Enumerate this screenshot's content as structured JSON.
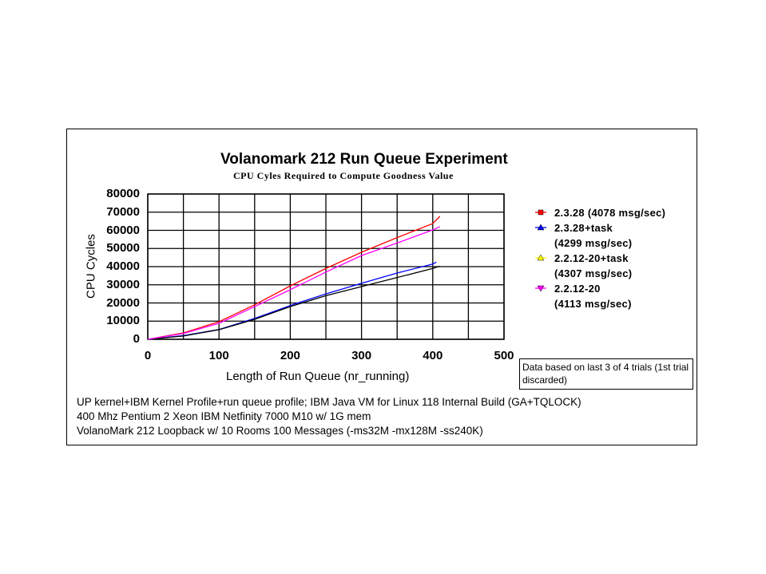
{
  "chart_data": {
    "type": "line",
    "title": "Volanomark 212 Run Queue Experiment",
    "subtitle": "CPU Cyles Required to Compute Goodness Value",
    "xlabel": "Length of Run Queue (nr_running)",
    "ylabel": "CPU Cycles",
    "xlim": [
      0,
      500
    ],
    "ylim": [
      0,
      80000
    ],
    "xticks": [
      "0",
      "100",
      "200",
      "300",
      "400",
      "500"
    ],
    "yticks": [
      "0",
      "10000",
      "20000",
      "30000",
      "40000",
      "50000",
      "60000",
      "70000",
      "80000"
    ],
    "grid": true,
    "legend_position": "right",
    "series": [
      {
        "name": "2.3.28 (4078 msg/sec)",
        "label_lines": [
          "2.3.28 (4078 msg/sec)"
        ],
        "color": "#ff0000",
        "line_color": "#ff0000",
        "marker": "square",
        "x": [
          0,
          50,
          100,
          150,
          200,
          250,
          300,
          350,
          400,
          410
        ],
        "y": [
          0,
          3500,
          9700,
          19000,
          29400,
          39000,
          47900,
          56000,
          63700,
          67700
        ]
      },
      {
        "name": "2.3.28+task (4299 msg/sec)",
        "label_lines": [
          "2.3.28+task",
          "(4299 msg/sec)"
        ],
        "color": "#0000ff",
        "line_color": "#0000ff",
        "marker": "triangle-up",
        "x": [
          0,
          50,
          100,
          150,
          200,
          250,
          300,
          350,
          400,
          405
        ],
        "y": [
          0,
          2000,
          5400,
          11500,
          18600,
          25000,
          30800,
          36500,
          41400,
          42500
        ]
      },
      {
        "name": "2.2.12-20+task (4307 msg/sec)",
        "label_lines": [
          "2.2.12-20+task",
          "(4307 msg/sec)"
        ],
        "color": "#ffff00",
        "line_color": "#000000",
        "marker": "triangle-up",
        "x": [
          0,
          50,
          100,
          150,
          200,
          250,
          300,
          350,
          400,
          410
        ],
        "y": [
          0,
          1800,
          5300,
          11000,
          18000,
          24000,
          29000,
          34000,
          39000,
          40300
        ]
      },
      {
        "name": "2.2.12-20 (4113 msg/sec)",
        "label_lines": [
          "2.2.12-20",
          "(4113 msg/sec)"
        ],
        "color": "#ff00ff",
        "line_color": "#ff00ff",
        "marker": "triangle-down",
        "x": [
          0,
          50,
          100,
          150,
          200,
          250,
          300,
          350,
          400,
          410
        ],
        "y": [
          0,
          3200,
          8800,
          18000,
          27300,
          37000,
          46100,
          53000,
          60200,
          62000
        ]
      }
    ]
  },
  "note": "Data based on last 3 of 4 trials (1st trial discarded)",
  "footer": [
    "UP kernel+IBM Kernel Profile+run queue profile; IBM Java VM for Linux 118 Internal Build (GA+TQLOCK)",
    "400 Mhz Pentium 2 Xeon IBM Netfinity 7000 M10 w/ 1G mem",
    "VolanoMark 212 Loopback w/ 10 Rooms 100 Messages (-ms32M -mx128M -ss240K)"
  ]
}
